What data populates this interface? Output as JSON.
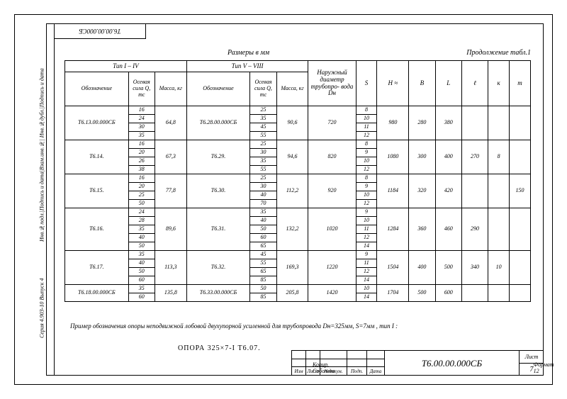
{
  "drawing_number": "Т6.00.00.000СБ",
  "drawing_number_rotated": "Т6.00.00.000СБ",
  "size_note": "Размеры в мм",
  "continuation": "Продолжение табл.1",
  "side_label_1": "Серия 4.903-10   Выпуск 4",
  "side_label_2": "Инв.№подл.|Подпись и дата|Взам.инв.№| Инв.№дубл.|Подпись и дата",
  "group_headers": {
    "g1": "Тип I – IV",
    "g2": "Тип V – VIII"
  },
  "col_headers": {
    "c1": "Обозначение",
    "c2": "Осевая сила Q, тс",
    "c3": "Масса, кг",
    "c4": "Обозначение",
    "c5": "Осевая сила Q, тс",
    "c6": "Масса, кг",
    "c7": "Наружный диаметр трубопро- вода Dн",
    "c8": "S",
    "c9": "H ≈",
    "c10": "B",
    "c11": "L",
    "c12": "ℓ",
    "c13": "к",
    "c14": "m"
  },
  "rows": [
    {
      "d1": "Т6.13.00.000СБ",
      "q1": [
        "16",
        "24",
        "30",
        "35"
      ],
      "m1": "64,8",
      "d2": "Т6.28.00.000СБ",
      "q2": [
        "25",
        "35",
        "45",
        "55"
      ],
      "m2": "90,6",
      "dn": "720",
      "s": [
        "8",
        "10",
        "11",
        "12"
      ],
      "h": "980",
      "b": "280",
      "L": "380",
      "l": "",
      "k": "",
      "m": ""
    },
    {
      "d1": "Т6.14.",
      "q1": [
        "16",
        "20",
        "26",
        "38"
      ],
      "m1": "67,3",
      "d2": "Т6.29.",
      "q2": [
        "25",
        "30",
        "35",
        "55"
      ],
      "m2": "94,6",
      "dn": "820",
      "s": [
        "8",
        "9",
        "10",
        "12"
      ],
      "h": "1080",
      "b": "300",
      "L": "400",
      "l": "270",
      "k": "8",
      "m": ""
    },
    {
      "d1": "Т6.15.",
      "q1": [
        "16",
        "20",
        "25",
        "50"
      ],
      "m1": "77,8",
      "d2": "Т6.30.",
      "q2": [
        "25",
        "30",
        "40",
        "70"
      ],
      "m2": "112,2",
      "dn": "920",
      "s": [
        "8",
        "9",
        "10",
        "12"
      ],
      "h": "1184",
      "b": "320",
      "L": "420",
      "l": "",
      "k": "",
      "m": "150"
    },
    {
      "d1": "Т6.16.",
      "q1": [
        "24",
        "28",
        "35",
        "40",
        "50"
      ],
      "m1": "89,6",
      "d2": "Т6.31.",
      "q2": [
        "35",
        "40",
        "50",
        "60",
        "65"
      ],
      "m2": "132,2",
      "dn": "1020",
      "s": [
        "9",
        "10",
        "11",
        "12",
        "14"
      ],
      "h": "1284",
      "b": "360",
      "L": "460",
      "l": "290",
      "k": "",
      "m": ""
    },
    {
      "d1": "Т6.17.",
      "q1": [
        "35",
        "40",
        "50",
        "60"
      ],
      "m1": "113,3",
      "d2": "Т6.32.",
      "q2": [
        "45",
        "55",
        "65",
        "85"
      ],
      "m2": "169,3",
      "dn": "1220",
      "s": [
        "9",
        "11",
        "12",
        "14"
      ],
      "h": "1504",
      "b": "400",
      "L": "500",
      "l": "340",
      "k": "10",
      "m": ""
    },
    {
      "d1": "Т6.18.00.000СБ",
      "q1": [
        "35",
        "60"
      ],
      "m1": "135,8",
      "d2": "Т6.33.00.000СБ",
      "q2": [
        "50",
        "85"
      ],
      "m2": "205,8",
      "dn": "1420",
      "s": [
        "10",
        "14"
      ],
      "h": "1704",
      "b": "500",
      "L": "600",
      "l": "",
      "k": "",
      "m": ""
    }
  ],
  "example_text": "Пример обозначения опоры неподвижной лобовой двухупорной усиленной для трубопровода Dн=325мм, S=7мм , тип I :",
  "example_formula": "ОПОРА  325×7-I  Т6.07.",
  "title_block": {
    "small_headers": [
      "Изм",
      "Лист",
      "№докум.",
      "Подп.",
      "Дата"
    ],
    "sheet_label": "Лист",
    "sheet_num": "7",
    "copier": "Копир. Соболева",
    "format": "Формат 12"
  },
  "colors": {
    "line": "#000000",
    "bg": "#ffffff"
  },
  "col_widths_pct": [
    12,
    5,
    6,
    12,
    5,
    6,
    9,
    4,
    6,
    5,
    5,
    5,
    4,
    4
  ]
}
